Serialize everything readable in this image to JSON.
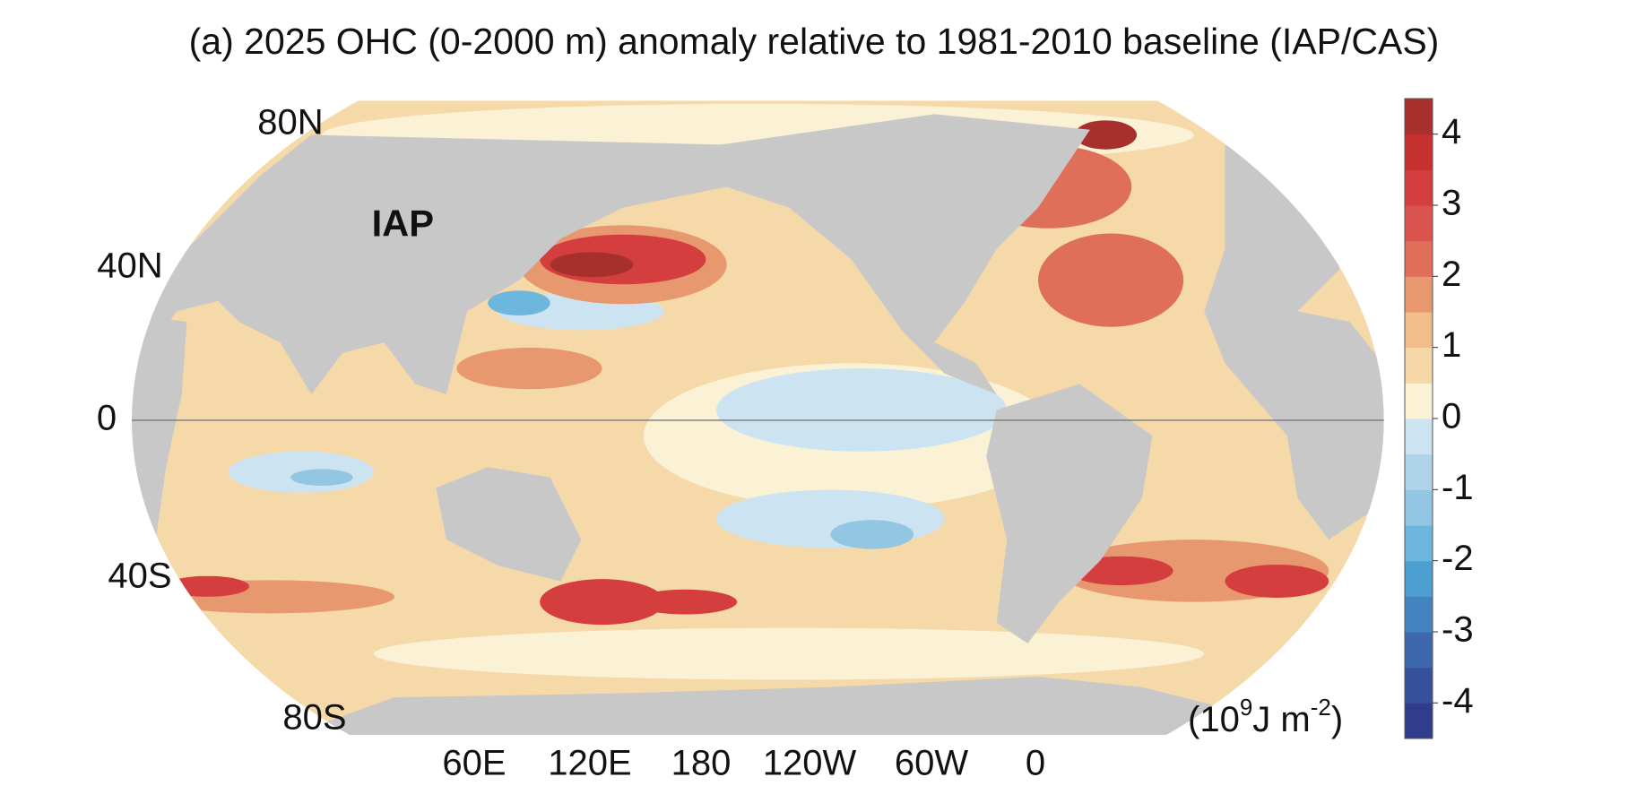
{
  "title": "(a) 2025 OHC (0-2000 m) anomaly relative to 1981-2010 baseline (IAP/CAS)",
  "map": {
    "label": "IAP",
    "lat_labels": [
      "80N",
      "40N",
      "0",
      "40S",
      "80S"
    ],
    "lon_labels": [
      "60E",
      "120E",
      "180",
      "120W",
      "60W",
      "0"
    ]
  },
  "colorbar": {
    "lim": [
      -4.5,
      4.5
    ],
    "ticks": [
      -4,
      -3,
      -2,
      -1,
      0,
      1,
      2,
      3,
      4
    ],
    "colors": [
      "#2f3d8c",
      "#37509c",
      "#3d68ad",
      "#4283c0",
      "#4d9fd2",
      "#6db6de",
      "#93c6e2",
      "#afd4ea",
      "#cce4f2",
      "#fbf1d5",
      "#f6d8a8",
      "#f1bd8a",
      "#e8986f",
      "#df6f58",
      "#d9534f",
      "#d43e3e",
      "#c5312f",
      "#a8302c"
    ],
    "unit": {
      "open": "(10",
      "exp1": "9",
      "mid": "J m",
      "exp2": "-2",
      "close": ")"
    }
  }
}
